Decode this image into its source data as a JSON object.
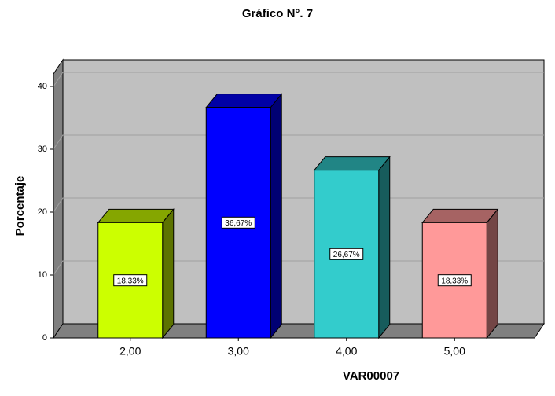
{
  "chart_data": {
    "type": "bar3d",
    "title": "Gráfico N°. 7",
    "x_label": "VAR00007",
    "y_label": "Porcentaje",
    "categories": [
      "2,00",
      "3,00",
      "4,00",
      "5,00"
    ],
    "values": [
      18.33,
      36.67,
      26.67,
      18.33
    ],
    "value_labels": [
      "18,33%",
      "36,67%",
      "26,67%",
      "18,33%"
    ],
    "colors": [
      "#ccff00",
      "#0000ff",
      "#33cccc",
      "#ff9999"
    ],
    "ylim": [
      0,
      42
    ],
    "yticks": [
      0,
      10,
      20,
      30,
      40
    ],
    "grid": true
  }
}
